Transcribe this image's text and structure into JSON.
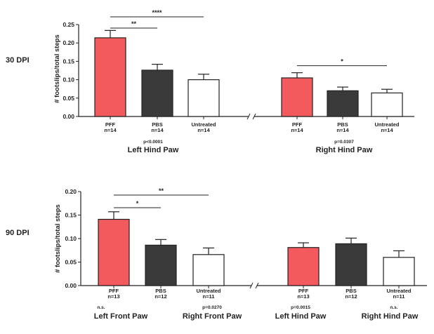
{
  "chart_data": [
    {
      "type": "bar",
      "row_label": "30 DPI",
      "ylabel": "# footslips/total steps",
      "ylim": [
        0,
        0.25
      ],
      "yticks": [
        "0.00",
        "0.05",
        "0.10",
        "0.15",
        "0.20",
        "0.25"
      ],
      "groups": [
        {
          "title": "Left Hind Paw",
          "pvalue": "p<0.0001",
          "bars": [
            {
              "category": "PFF",
              "n": "n=14",
              "value": 0.214,
              "error": 0.02,
              "color": "#f25a5e"
            },
            {
              "category": "PBS",
              "n": "n=14",
              "value": 0.126,
              "error": 0.016,
              "color": "#3a3a3a"
            },
            {
              "category": "Untreated",
              "n": "n=14",
              "value": 0.1,
              "error": 0.015,
              "color": "#ffffff"
            }
          ],
          "significance": [
            {
              "from": 0,
              "to": 1,
              "label": "**"
            },
            {
              "from": 0,
              "to": 2,
              "label": "****"
            }
          ]
        },
        {
          "title": "Right Hind Paw",
          "pvalue": "p=0.0307",
          "bars": [
            {
              "category": "PFF",
              "n": "n=14",
              "value": 0.105,
              "error": 0.014,
              "color": "#f25a5e"
            },
            {
              "category": "PBS",
              "n": "n=14",
              "value": 0.07,
              "error": 0.01,
              "color": "#3a3a3a"
            },
            {
              "category": "Untreated",
              "n": "n=14",
              "value": 0.064,
              "error": 0.01,
              "color": "#ffffff"
            }
          ],
          "significance": [
            {
              "from": 0,
              "to": 2,
              "label": "*"
            }
          ]
        }
      ]
    },
    {
      "type": "bar",
      "row_label": "90 DPI",
      "ylabel": "# footslips/total steps",
      "ylim": [
        0,
        0.2
      ],
      "yticks": [
        "0.00",
        "0.05",
        "0.10",
        "0.15",
        "0.20"
      ],
      "groups": [
        {
          "title": "Left Front Paw",
          "pvalue": "n.s.",
          "bars": [
            {
              "category": "PFF",
              "n": "n=13",
              "value": 0.141,
              "error": 0.016,
              "color": "#f25a5e"
            },
            {
              "category": "PBS",
              "n": "n=12",
              "value": 0.086,
              "error": 0.012,
              "color": "#3a3a3a"
            },
            {
              "category": "Untreated",
              "n": "n=11",
              "value": 0.066,
              "error": 0.014,
              "color": "#ffffff"
            }
          ],
          "significance": [
            {
              "from": 0,
              "to": 1,
              "label": "*"
            },
            {
              "from": 0,
              "to": 2,
              "label": "**"
            }
          ]
        },
        {
          "title": "Right Front Paw",
          "pvalue": "p=0.0270",
          "bars": [],
          "significance": []
        },
        {
          "title": "Left Hind Paw",
          "pvalue": "p=0.0015",
          "bars": [
            {
              "category": "PFF",
              "n": "n=13",
              "value": 0.081,
              "error": 0.01,
              "color": "#f25a5e"
            },
            {
              "category": "PBS",
              "n": "n=12",
              "value": 0.089,
              "error": 0.012,
              "color": "#3a3a3a"
            },
            {
              "category": "Untreated",
              "n": "n=11",
              "value": 0.06,
              "error": 0.014,
              "color": "#ffffff"
            }
          ],
          "significance": []
        },
        {
          "title": "Right Hind Paw",
          "pvalue": "n.s.",
          "bars": [],
          "significance": []
        }
      ]
    }
  ]
}
